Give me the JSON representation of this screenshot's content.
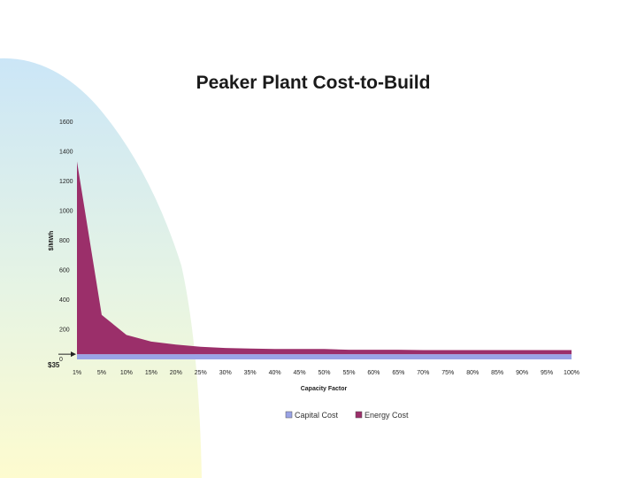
{
  "colors": {
    "background_gradient_top": "#cbe6f7",
    "background_gradient_bottom": "#fdfbcf",
    "capital_cost": "#9aa3e6",
    "energy_cost": "#9b2f6a"
  },
  "chart_data": {
    "type": "area",
    "title": "Peaker Plant Cost-to-Build",
    "xlabel": "Capacity Factor",
    "ylabel": "$/MWh",
    "ylim": [
      0,
      1600
    ],
    "yticks": [
      "0",
      "200",
      "400",
      "600",
      "800",
      "1000",
      "1200",
      "1400",
      "1600"
    ],
    "categories": [
      "1%",
      "5%",
      "10%",
      "15%",
      "20%",
      "25%",
      "30%",
      "35%",
      "40%",
      "45%",
      "50%",
      "55%",
      "60%",
      "65%",
      "70%",
      "75%",
      "80%",
      "85%",
      "90%",
      "95%",
      "100%"
    ],
    "series": [
      {
        "name": "Capital Cost",
        "color": "#9aa3e6",
        "values": [
          35,
          35,
          35,
          35,
          35,
          35,
          35,
          35,
          35,
          35,
          35,
          35,
          35,
          35,
          35,
          35,
          35,
          35,
          35,
          35,
          35
        ]
      },
      {
        "name": "Energy Cost",
        "color": "#9b2f6a",
        "values": [
          1300,
          265,
          130,
          85,
          65,
          50,
          42,
          38,
          35,
          35,
          35,
          30,
          30,
          30,
          28,
          28,
          28,
          28,
          28,
          28,
          28
        ]
      }
    ],
    "stacked": true,
    "legend": "bottom",
    "grid": false,
    "annotation": {
      "label": "$35",
      "value": 35
    }
  }
}
